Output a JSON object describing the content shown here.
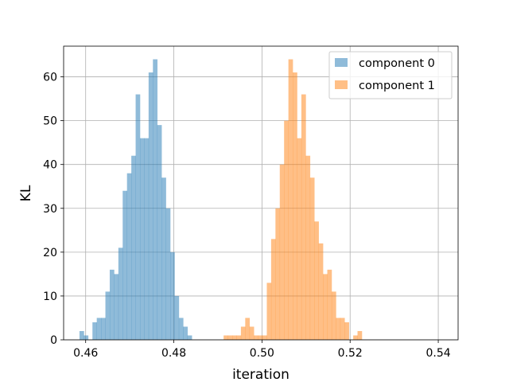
{
  "chart_data": {
    "type": "histogram",
    "xlabel": "iteration",
    "ylabel": "KL",
    "xlim": [
      0.455,
      0.5445
    ],
    "ylim": [
      0,
      67
    ],
    "xticks": [
      0.46,
      0.48,
      0.5,
      0.52,
      0.54
    ],
    "xtick_labels": [
      "0.46",
      "0.48",
      "0.50",
      "0.52",
      "0.54"
    ],
    "yticks": [
      0,
      10,
      20,
      30,
      40,
      50,
      60
    ],
    "ytick_labels": [
      "0",
      "10",
      "20",
      "30",
      "40",
      "50",
      "60"
    ],
    "grid": true,
    "legend_position": "top-right",
    "bar_alpha": 0.5,
    "series": [
      {
        "name": "component 0",
        "color": "#1f77b4",
        "bin_start": 0.4586,
        "bin_width": 0.00098,
        "values": [
          2,
          1,
          0,
          4,
          5,
          5,
          11,
          16,
          15,
          21,
          34,
          38,
          42,
          56,
          46,
          46,
          61,
          64,
          49,
          37,
          30,
          20,
          10,
          5,
          3,
          1
        ]
      },
      {
        "name": "component 1",
        "color": "#ff7f0e",
        "bin_start": 0.4913,
        "bin_width": 0.00098,
        "values": [
          1,
          1,
          1,
          1,
          3,
          5,
          3,
          1,
          1,
          1,
          13,
          23,
          30,
          40,
          50,
          64,
          61,
          46,
          56,
          42,
          37,
          27,
          22,
          15,
          16,
          11,
          5,
          5,
          4,
          0,
          1,
          2
        ]
      }
    ]
  }
}
